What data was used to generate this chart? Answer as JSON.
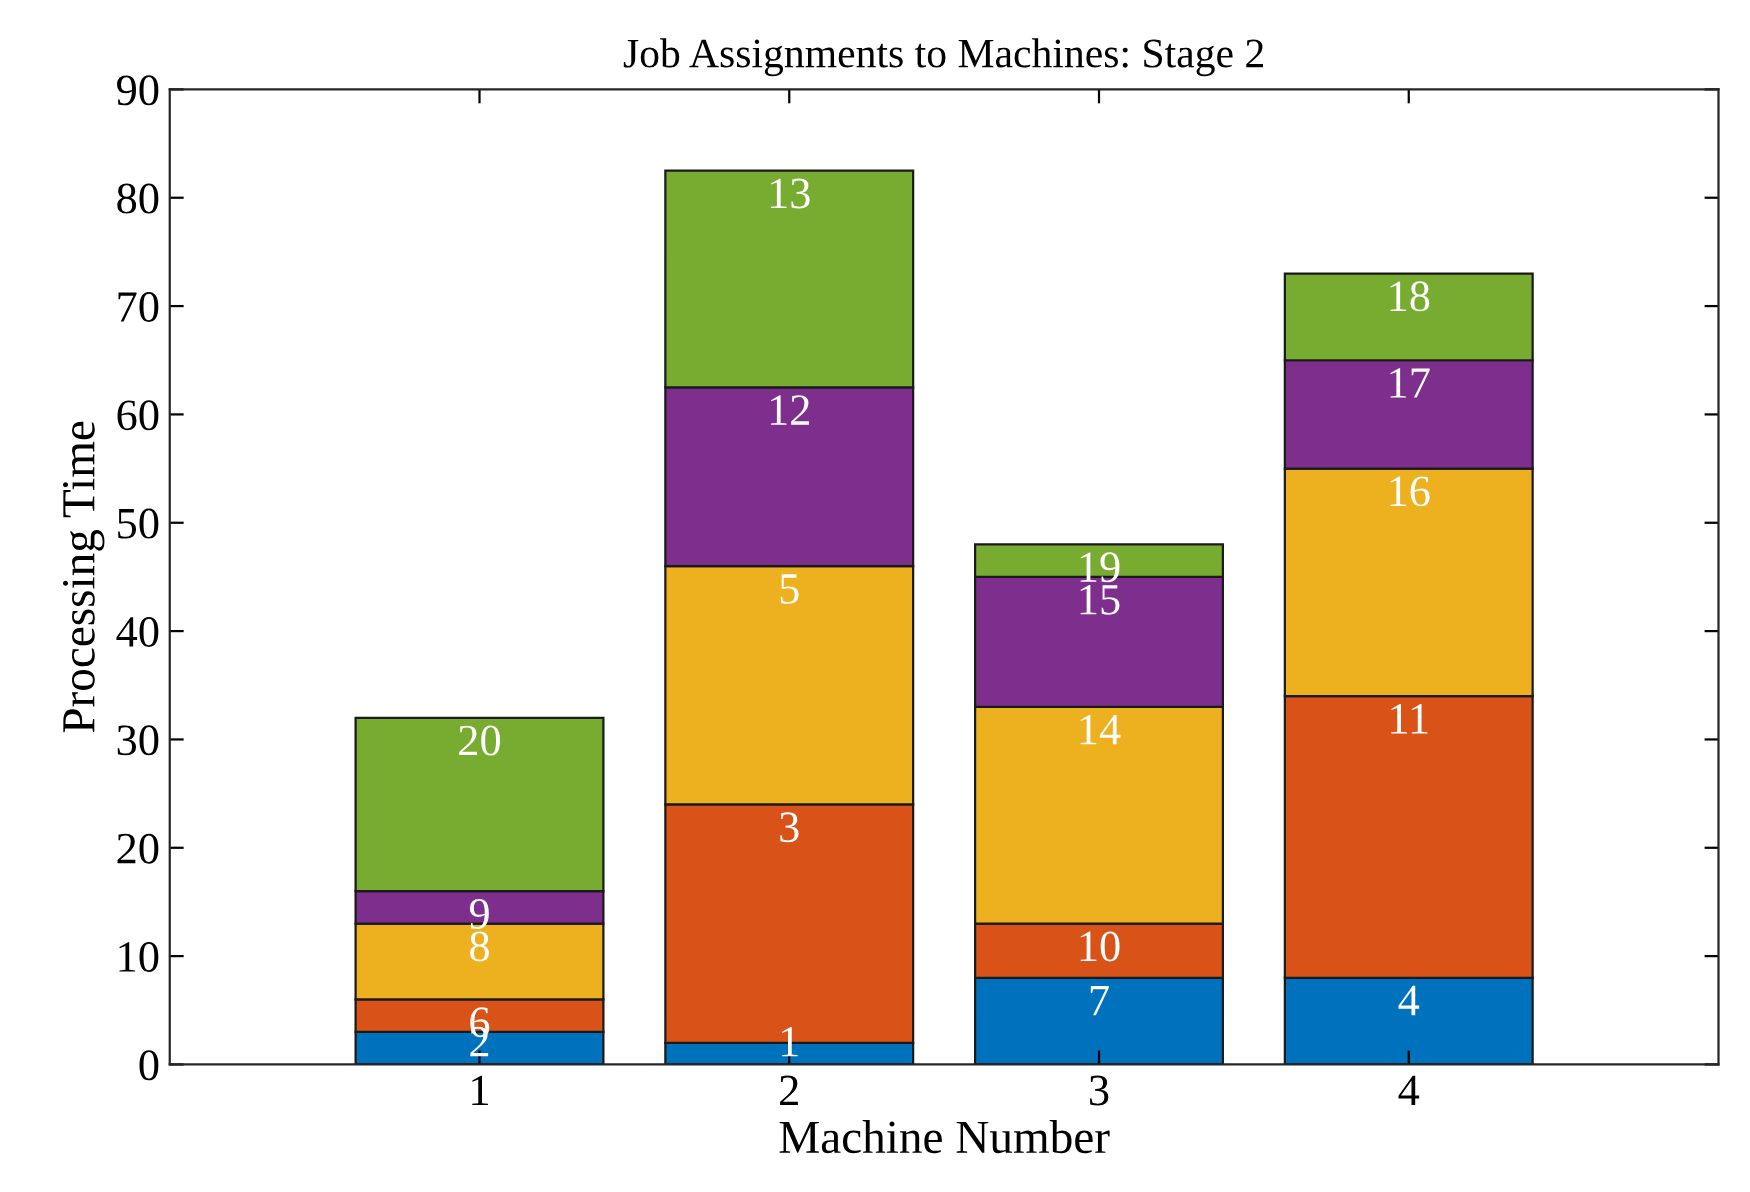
{
  "chart_data": {
    "type": "bar",
    "stacked": true,
    "title": "Job Assignments to Machines: Stage 2",
    "xlabel": "Machine Number",
    "ylabel": "Processing Time",
    "x": [
      1,
      2,
      3,
      4
    ],
    "xlim": [
      0,
      5
    ],
    "xticks": [
      1,
      2,
      3,
      4
    ],
    "ylim": [
      0,
      90
    ],
    "yticks": [
      0,
      10,
      20,
      30,
      40,
      50,
      60,
      70,
      80,
      90
    ],
    "grid": false,
    "legend": false,
    "series": [
      {
        "color": "#0072bd",
        "values": [
          3,
          2,
          8,
          8
        ]
      },
      {
        "color": "#d95319",
        "values": [
          3,
          22,
          5,
          26
        ]
      },
      {
        "color": "#edb120",
        "values": [
          7,
          22,
          20,
          21
        ]
      },
      {
        "color": "#7e2f8e",
        "values": [
          3,
          16.5,
          12,
          10
        ]
      },
      {
        "color": "#77ac30",
        "values": [
          16,
          20,
          3,
          8
        ]
      }
    ],
    "annotations": [
      {
        "text": "2",
        "x": 1,
        "y": 3
      },
      {
        "text": "6",
        "x": 1,
        "y": 6
      },
      {
        "text": "8",
        "x": 1,
        "y": 13
      },
      {
        "text": "9",
        "x": 1,
        "y": 16
      },
      {
        "text": "20",
        "x": 1,
        "y": 32
      },
      {
        "text": "1",
        "x": 2,
        "y": 2
      },
      {
        "text": "3",
        "x": 2,
        "y": 24
      },
      {
        "text": "5",
        "x": 2,
        "y": 46
      },
      {
        "text": "12",
        "x": 2,
        "y": 62.5
      },
      {
        "text": "13",
        "x": 2,
        "y": 82.5
      },
      {
        "text": "7",
        "x": 3,
        "y": 8
      },
      {
        "text": "10",
        "x": 3,
        "y": 13
      },
      {
        "text": "14",
        "x": 3,
        "y": 33
      },
      {
        "text": "15",
        "x": 3,
        "y": 45
      },
      {
        "text": "19",
        "x": 3,
        "y": 48
      },
      {
        "text": "4",
        "x": 4,
        "y": 8
      },
      {
        "text": "11",
        "x": 4,
        "y": 34
      },
      {
        "text": "16",
        "x": 4,
        "y": 55
      },
      {
        "text": "17",
        "x": 4,
        "y": 65
      },
      {
        "text": "18",
        "x": 4,
        "y": 73
      }
    ]
  }
}
